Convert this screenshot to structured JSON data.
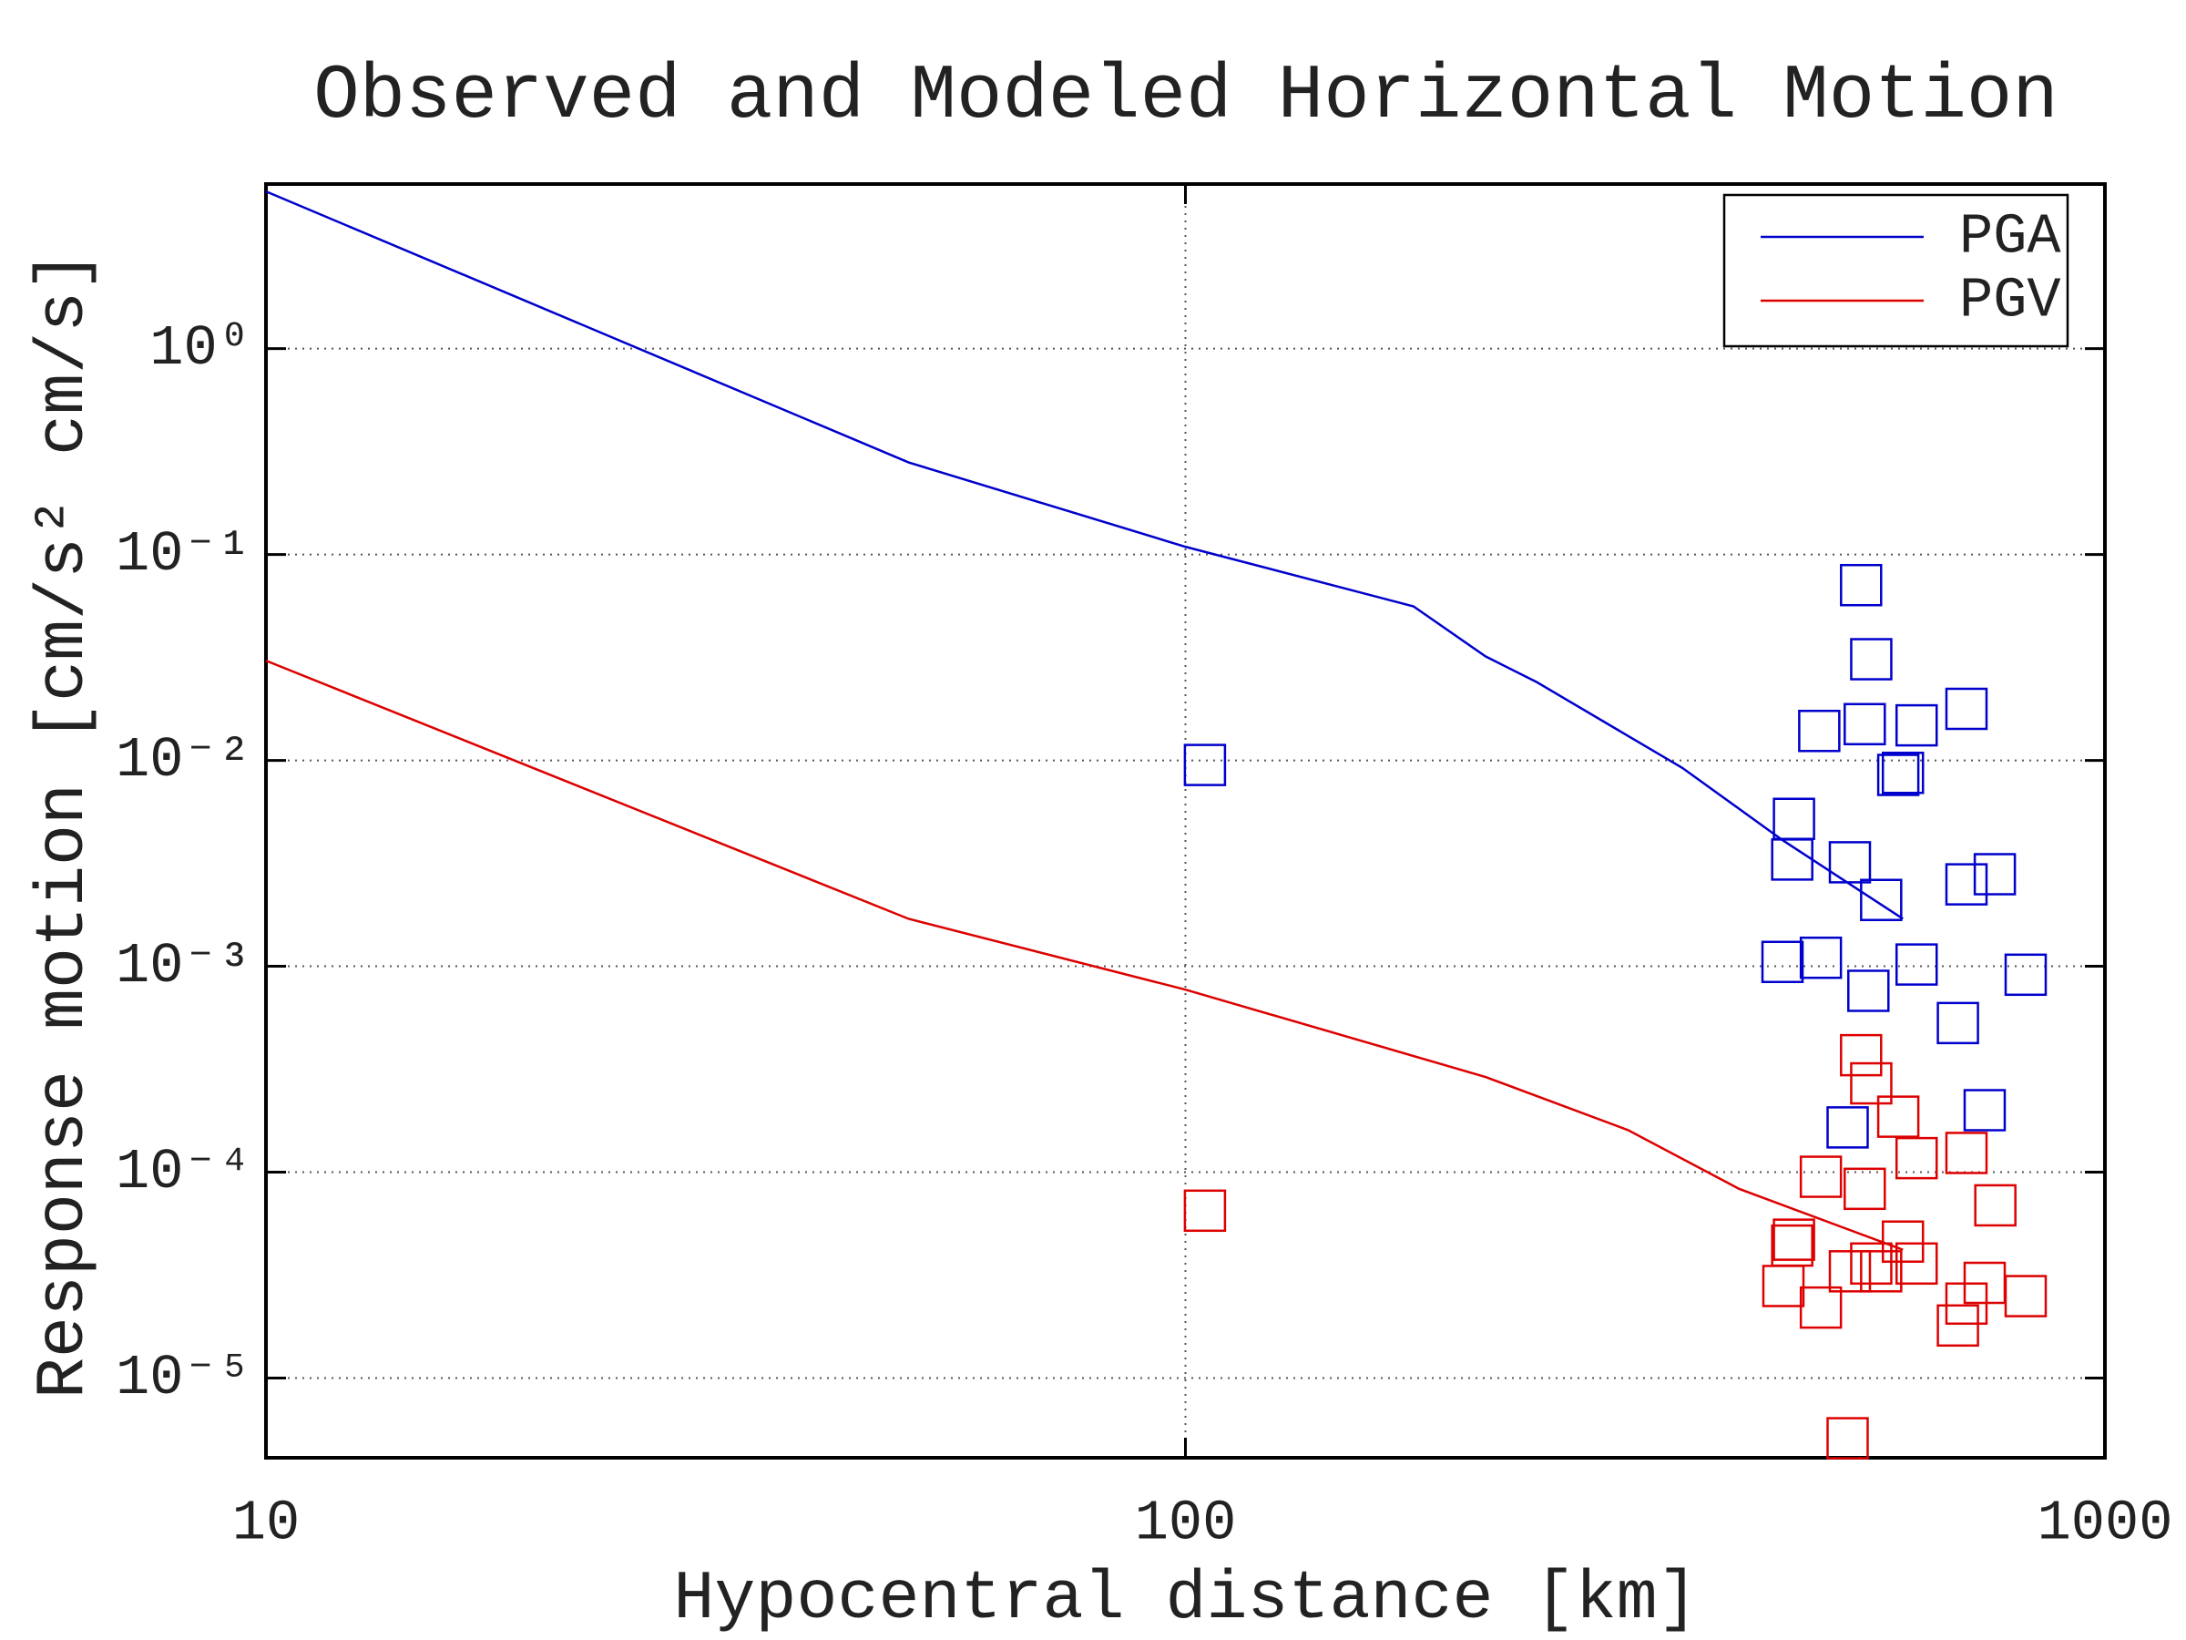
{
  "chart_data": {
    "type": "line",
    "title": "Observed and Modeled Horizontal Motion",
    "x_label": "Hypocentral distance [km]",
    "y_label": "Response motion [cm/s²  cm/s]",
    "x_log": true,
    "y_log": true,
    "grid": true,
    "legend": "upper right",
    "xlim": [
      10,
      1000
    ],
    "xticks": [
      10,
      100,
      1000
    ],
    "ylim": [
      4.1e-06,
      6.3
    ],
    "yticks": [
      {
        "value": 1,
        "label": "10⁰"
      },
      {
        "value": 0.1,
        "label": "10⁻¹"
      },
      {
        "value": 0.01,
        "label": "10⁻²"
      },
      {
        "value": 0.001,
        "label": "10⁻³"
      },
      {
        "value": 0.0001,
        "label": "10⁻⁴"
      },
      {
        "value": 1e-05,
        "label": "10⁻⁵"
      }
    ],
    "series": [
      {
        "name": "PGA",
        "color": "#0000cc",
        "x": [
          10,
          50,
          100,
          177,
          212,
          241,
          347,
          446,
          603
        ],
        "values": [
          5.8,
          0.28,
          0.109,
          0.056,
          0.032,
          0.024,
          0.0092,
          0.0041,
          0.0017
        ],
        "observed_x": [
          105,
          543,
          557,
          489,
          548,
          624,
          707,
          596,
          603,
          459,
          457,
          528,
          571,
          707,
          759,
          446,
          491,
          624,
          553,
          820,
          692,
          740,
          525
        ],
        "observed_values": [
          0.0095,
          0.071,
          0.031,
          0.0139,
          0.015,
          0.0148,
          0.0178,
          0.0085,
          0.0087,
          0.0052,
          0.0033,
          0.0032,
          0.0021,
          0.0025,
          0.0028,
          0.00105,
          0.0011,
          0.00102,
          0.00076,
          0.00091,
          0.00053,
          0.0002,
          0.000165
        ]
      },
      {
        "name": "PGV",
        "color": "#dd0000",
        "x": [
          10,
          50,
          100,
          212,
          303,
          400,
          603
        ],
        "values": [
          0.0305,
          0.0017,
          0.00077,
          0.00029,
          0.00016,
          8.3e-05,
          4.2e-05
        ],
        "observed_x": [
          105,
          543,
          557,
          596,
          491,
          548,
          624,
          707,
          760,
          459,
          457,
          603,
          557,
          528,
          571,
          624,
          447,
          491,
          707,
          740,
          820,
          692,
          525
        ],
        "observed_values": [
          6.5e-05,
          0.00037,
          0.00027,
          0.000186,
          9.5e-05,
          8.3e-05,
          0.000117,
          0.000124,
          6.9e-05,
          4.7e-05,
          4.4e-05,
          4.6e-05,
          3.6e-05,
          3.3e-05,
          3.3e-05,
          3.6e-05,
          2.8e-05,
          2.2e-05,
          2.3e-05,
          2.9e-05,
          2.5e-05,
          1.8e-05,
          5.1e-06
        ]
      }
    ]
  }
}
